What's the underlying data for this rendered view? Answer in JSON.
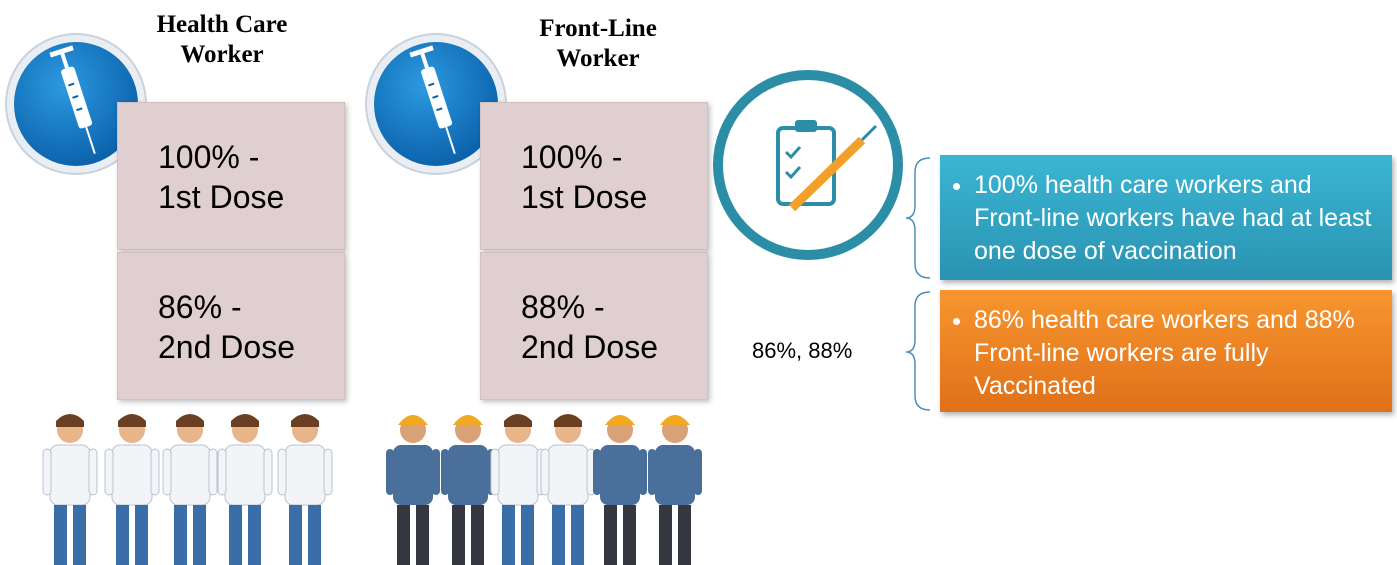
{
  "columns": [
    {
      "title": [
        "Health Care",
        "Worker"
      ],
      "first_dose": [
        "100% -",
        "1st Dose"
      ],
      "second_dose": [
        "86% -",
        "2nd Dose"
      ]
    },
    {
      "title": [
        "Front-Line",
        "Worker"
      ],
      "first_dose": [
        "100% -",
        "1st Dose"
      ],
      "second_dose": [
        "88% -",
        "2nd Dose"
      ]
    }
  ],
  "summary_label": "86%, 88%",
  "bullets": [
    "100% health care workers and Front-line workers have had at least one dose of vaccination",
    "86% health care workers and 88% Front-line workers are fully Vaccinated"
  ]
}
